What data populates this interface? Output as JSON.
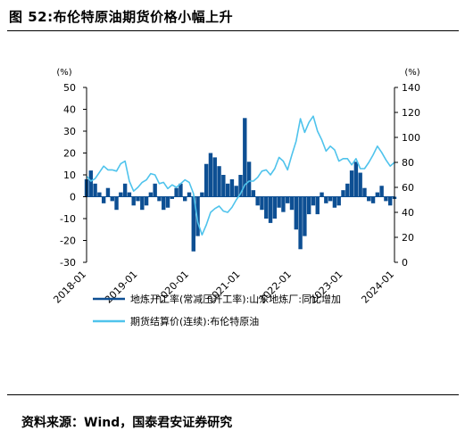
{
  "figure": {
    "title": "图 52:布伦特原油期货价格小幅上升",
    "source": "资料来源：Wind，国泰君安证券研究"
  },
  "chart_data": {
    "type": "bar+line",
    "title": "",
    "y_left": {
      "unit": "(%)",
      "ylim": [
        -30,
        50
      ],
      "ticks": [
        "50",
        "40",
        "30",
        "20",
        "10",
        "0",
        "-10",
        "-20",
        "-30"
      ]
    },
    "y_right": {
      "unit": "(%)",
      "ylim": [
        0,
        140
      ],
      "ticks": [
        "140",
        "120",
        "100",
        "80",
        "60",
        "40",
        "20",
        "0"
      ]
    },
    "x_ticks": [
      "2018-01",
      "2019-01",
      "2020-01",
      "2021-01",
      "2022-01",
      "2023-01",
      "2024-01"
    ],
    "legend_position": "bottom",
    "series": [
      {
        "name": "地炼开工率(常减压开工率):山东地炼厂:同比增加",
        "type": "bar",
        "axis": "left",
        "color": "#0d4f93",
        "points": [
          [
            "2018-01",
            8
          ],
          [
            "2018-02",
            12
          ],
          [
            "2018-03",
            6
          ],
          [
            "2018-04",
            2
          ],
          [
            "2018-05",
            -3
          ],
          [
            "2018-06",
            4
          ],
          [
            "2018-07",
            -2
          ],
          [
            "2018-08",
            -6
          ],
          [
            "2018-09",
            2
          ],
          [
            "2018-10",
            6
          ],
          [
            "2018-11",
            2
          ],
          [
            "2018-12",
            -4
          ],
          [
            "2019-01",
            -2
          ],
          [
            "2019-02",
            -6
          ],
          [
            "2019-03",
            -4
          ],
          [
            "2019-04",
            2
          ],
          [
            "2019-05",
            6
          ],
          [
            "2019-06",
            -2
          ],
          [
            "2019-07",
            -6
          ],
          [
            "2019-08",
            -5
          ],
          [
            "2019-09",
            -1
          ],
          [
            "2019-10",
            4
          ],
          [
            "2019-11",
            6
          ],
          [
            "2019-12",
            -2
          ],
          [
            "2020-01",
            2
          ],
          [
            "2020-02",
            -25
          ],
          [
            "2020-03",
            -18
          ],
          [
            "2020-04",
            2
          ],
          [
            "2020-05",
            15
          ],
          [
            "2020-06",
            20
          ],
          [
            "2020-07",
            18
          ],
          [
            "2020-08",
            14
          ],
          [
            "2020-09",
            10
          ],
          [
            "2020-10",
            6
          ],
          [
            "2020-11",
            8
          ],
          [
            "2020-12",
            5
          ],
          [
            "2021-01",
            10
          ],
          [
            "2021-02",
            36
          ],
          [
            "2021-03",
            16
          ],
          [
            "2021-04",
            3
          ],
          [
            "2021-05",
            -4
          ],
          [
            "2021-06",
            -6
          ],
          [
            "2021-07",
            -10
          ],
          [
            "2021-08",
            -12
          ],
          [
            "2021-09",
            -10
          ],
          [
            "2021-10",
            -5
          ],
          [
            "2021-11",
            -7
          ],
          [
            "2021-12",
            -3
          ],
          [
            "2022-01",
            -6
          ],
          [
            "2022-02",
            -15
          ],
          [
            "2022-03",
            -24
          ],
          [
            "2022-04",
            -18
          ],
          [
            "2022-05",
            -8
          ],
          [
            "2022-06",
            -4
          ],
          [
            "2022-07",
            -8
          ],
          [
            "2022-08",
            2
          ],
          [
            "2022-09",
            -3
          ],
          [
            "2022-10",
            -2
          ],
          [
            "2022-11",
            -5
          ],
          [
            "2022-12",
            -4
          ],
          [
            "2023-01",
            3
          ],
          [
            "2023-02",
            6
          ],
          [
            "2023-03",
            12
          ],
          [
            "2023-04",
            16
          ],
          [
            "2023-05",
            11
          ],
          [
            "2023-06",
            4
          ],
          [
            "2023-07",
            -2
          ],
          [
            "2023-08",
            -3
          ],
          [
            "2023-09",
            2
          ],
          [
            "2023-10",
            5
          ],
          [
            "2023-11",
            -2
          ],
          [
            "2023-12",
            -4
          ],
          [
            "2024-01",
            -1
          ]
        ]
      },
      {
        "name": "期货结算价(连续):布伦特原油",
        "type": "line",
        "axis": "right",
        "color": "#4fc3ec",
        "points": [
          [
            "2018-01",
            69
          ],
          [
            "2018-02",
            65
          ],
          [
            "2018-03",
            67
          ],
          [
            "2018-04",
            72
          ],
          [
            "2018-05",
            77
          ],
          [
            "2018-06",
            74
          ],
          [
            "2018-07",
            74
          ],
          [
            "2018-08",
            73
          ],
          [
            "2018-09",
            79
          ],
          [
            "2018-10",
            81
          ],
          [
            "2018-11",
            65
          ],
          [
            "2018-12",
            57
          ],
          [
            "2019-01",
            60
          ],
          [
            "2019-02",
            64
          ],
          [
            "2019-03",
            66
          ],
          [
            "2019-04",
            71
          ],
          [
            "2019-05",
            70
          ],
          [
            "2019-06",
            63
          ],
          [
            "2019-07",
            64
          ],
          [
            "2019-08",
            59
          ],
          [
            "2019-09",
            62
          ],
          [
            "2019-10",
            60
          ],
          [
            "2019-11",
            63
          ],
          [
            "2019-12",
            66
          ],
          [
            "2020-01",
            64
          ],
          [
            "2020-02",
            55
          ],
          [
            "2020-03",
            32
          ],
          [
            "2020-04",
            22
          ],
          [
            "2020-05",
            30
          ],
          [
            "2020-06",
            40
          ],
          [
            "2020-07",
            43
          ],
          [
            "2020-08",
            45
          ],
          [
            "2020-09",
            41
          ],
          [
            "2020-10",
            40
          ],
          [
            "2020-11",
            44
          ],
          [
            "2020-12",
            50
          ],
          [
            "2021-01",
            55
          ],
          [
            "2021-02",
            62
          ],
          [
            "2021-03",
            65
          ],
          [
            "2021-04",
            65
          ],
          [
            "2021-05",
            68
          ],
          [
            "2021-06",
            73
          ],
          [
            "2021-07",
            74
          ],
          [
            "2021-08",
            70
          ],
          [
            "2021-09",
            75
          ],
          [
            "2021-10",
            84
          ],
          [
            "2021-11",
            81
          ],
          [
            "2021-12",
            74
          ],
          [
            "2022-01",
            86
          ],
          [
            "2022-02",
            97
          ],
          [
            "2022-03",
            115
          ],
          [
            "2022-04",
            104
          ],
          [
            "2022-05",
            112
          ],
          [
            "2022-06",
            117
          ],
          [
            "2022-07",
            105
          ],
          [
            "2022-08",
            98
          ],
          [
            "2022-09",
            89
          ],
          [
            "2022-10",
            93
          ],
          [
            "2022-11",
            90
          ],
          [
            "2022-12",
            81
          ],
          [
            "2023-01",
            83
          ],
          [
            "2023-02",
            83
          ],
          [
            "2023-03",
            78
          ],
          [
            "2023-04",
            83
          ],
          [
            "2023-05",
            75
          ],
          [
            "2023-06",
            75
          ],
          [
            "2023-07",
            80
          ],
          [
            "2023-08",
            86
          ],
          [
            "2023-09",
            93
          ],
          [
            "2023-10",
            88
          ],
          [
            "2023-11",
            82
          ],
          [
            "2023-12",
            77
          ],
          [
            "2024-01",
            80
          ]
        ]
      }
    ]
  }
}
